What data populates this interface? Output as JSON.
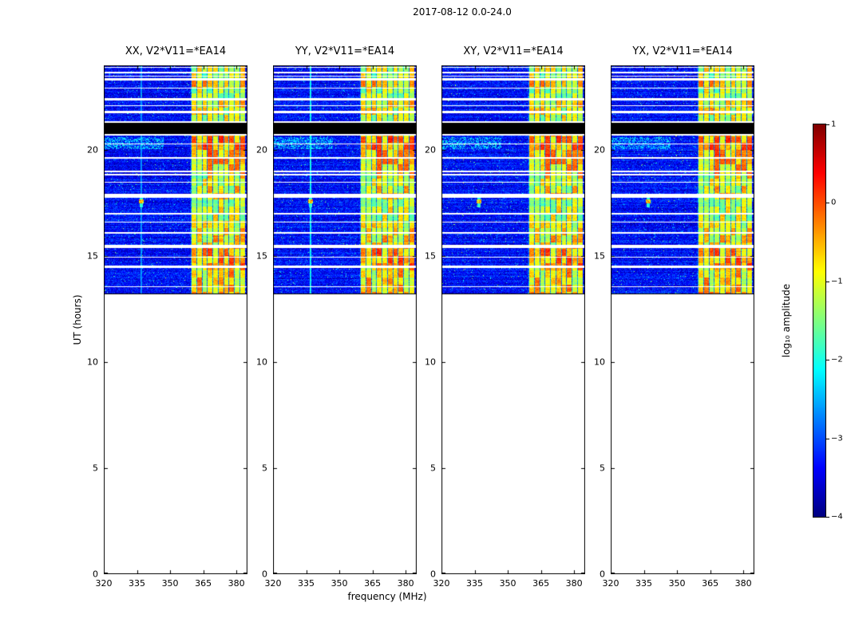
{
  "chart_data": {
    "type": "heatmap",
    "title": "2017-08-12 0.0-24.0",
    "xlabel": "frequency (MHz)",
    "ylabel": "UT (hours)",
    "xlim": [
      320,
      385
    ],
    "ylim": [
      0,
      24
    ],
    "xticks": [
      320,
      335,
      350,
      365,
      380
    ],
    "yticks": [
      0,
      5,
      10,
      15,
      20
    ],
    "grid": false,
    "panels": [
      {
        "title": "XX, V2*V11=*EA14",
        "seed": 11,
        "vline_strength": 0.4
      },
      {
        "title": "YY, V2*V11=*EA14",
        "seed": 22,
        "vline_strength": 0.9
      },
      {
        "title": "XY, V2*V11=*EA14",
        "seed": 33,
        "vline_strength": 0
      },
      {
        "title": "YX, V2*V11=*EA14",
        "seed": 44,
        "vline_strength": 0
      }
    ],
    "colorbar": {
      "label": "log₁₀ amplitude",
      "colormap": "jet",
      "vmin": -4,
      "vmax": 1,
      "tick_values": [
        1,
        0,
        -1,
        -2,
        -3,
        -4
      ],
      "tick_labels": [
        "1",
        "0",
        "−1",
        "−2",
        "−3",
        "−4"
      ]
    },
    "heatmap": {
      "data_start_hour": 13.2,
      "no_data_color": "#ffffff",
      "background_log_amp": -3.35,
      "rfi_band_mhz": [
        359.5,
        384.0
      ],
      "channel_width_mhz": 2.45,
      "vline_freq_mhz": 337,
      "black_bands_hours": [
        [
          20.78,
          21.3
        ]
      ],
      "white_gaps_hours": [
        [
          23.62,
          23.7
        ],
        [
          23.3,
          23.38
        ],
        [
          22.35,
          22.45
        ],
        [
          21.3,
          21.38
        ],
        [
          20.7,
          20.78
        ],
        [
          19.6,
          19.68
        ],
        [
          18.8,
          18.88
        ],
        [
          17.76,
          17.94
        ],
        [
          15.4,
          15.53
        ],
        [
          14.44,
          14.54
        ]
      ],
      "white_lines_hours": [
        23.92,
        23.5,
        22.93,
        22.1,
        21.82,
        21.76,
        20.28,
        19.0,
        18.5,
        17.0,
        16.62,
        16.1,
        14.95,
        13.56
      ],
      "band_segments": [
        {
          "t": [
            23.7,
            24.0
          ],
          "level": -1.1
        },
        {
          "t": [
            23.38,
            23.62
          ],
          "level": -1.15
        },
        {
          "t": [
            22.93,
            23.3
          ],
          "level": -0.85
        },
        {
          "t": [
            22.45,
            22.93
          ],
          "level": -1.2
        },
        {
          "t": [
            21.38,
            22.35
          ],
          "level": -1.0
        },
        {
          "t": [
            19.68,
            20.7
          ],
          "level": -0.45
        },
        {
          "t": [
            18.88,
            19.6
          ],
          "level": -0.75
        },
        {
          "t": [
            17.94,
            18.8
          ],
          "level": -1.0
        },
        {
          "t": [
            16.6,
            17.76
          ],
          "level": -1.05
        },
        {
          "t": [
            15.53,
            16.6
          ],
          "level": -0.9
        },
        {
          "t": [
            14.54,
            15.4
          ],
          "level": -0.5
        },
        {
          "t": [
            13.2,
            14.44
          ],
          "level": -0.75
        }
      ],
      "cyan_patch": {
        "hours": [
          20.05,
          20.62
        ],
        "freq_max_mhz": 347
      },
      "blip": {
        "hour": 17.58,
        "freq_mhz": 337
      }
    }
  }
}
